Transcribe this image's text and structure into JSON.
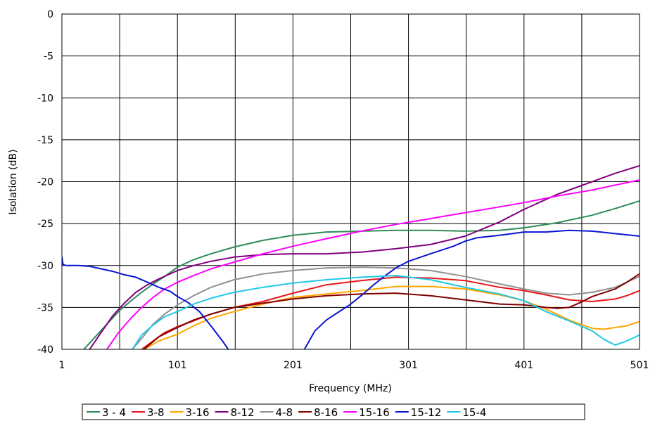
{
  "chart_data": {
    "type": "line",
    "xlabel": "Frequency (MHz)",
    "ylabel": "Isolation (dB)",
    "xlim": [
      1,
      501
    ],
    "ylim": [
      -40,
      0
    ],
    "x_ticks": [
      "1",
      "101",
      "201",
      "301",
      "401",
      "501"
    ],
    "x_tick_values": [
      1,
      101,
      201,
      301,
      401,
      501
    ],
    "y_ticks": [
      "0",
      "-5",
      "-10",
      "-15",
      "-20",
      "-25",
      "-30",
      "-35",
      "-40"
    ],
    "y_tick_values": [
      0,
      -5,
      -10,
      -15,
      -20,
      -25,
      -30,
      -35,
      -40
    ],
    "grid": true,
    "legend_position": "bottom",
    "series": [
      {
        "name": "3 - 4",
        "color": "#2e8b57",
        "x": [
          20,
          30,
          40,
          50,
          60,
          70,
          80,
          90,
          101,
          115,
          130,
          150,
          175,
          201,
          230,
          260,
          290,
          320,
          350,
          380,
          401,
          430,
          460,
          480,
          501
        ],
        "y": [
          -40,
          -38.5,
          -37,
          -35.5,
          -34.3,
          -33.2,
          -32.2,
          -31.3,
          -30.2,
          -29.3,
          -28.6,
          -27.8,
          -27,
          -26.4,
          -26,
          -25.9,
          -25.8,
          -25.8,
          -25.9,
          -25.8,
          -25.5,
          -24.9,
          -24,
          -23.2,
          -22.3
        ]
      },
      {
        "name": "3-8",
        "color": "#e8161b",
        "x": [
          70,
          80,
          90,
          101,
          115,
          130,
          150,
          175,
          201,
          230,
          260,
          290,
          320,
          350,
          380,
          401,
          420,
          440,
          460,
          480,
          490,
          501
        ],
        "y": [
          -40,
          -39,
          -38,
          -37.3,
          -36.6,
          -35.8,
          -35,
          -34.3,
          -33.3,
          -32.3,
          -31.8,
          -31.4,
          -31.5,
          -31.8,
          -32.6,
          -33,
          -33.5,
          -34.1,
          -34.3,
          -34,
          -33.6,
          -33
        ]
      },
      {
        "name": "3-16",
        "color": "#ffa500",
        "x": [
          72,
          85,
          101,
          115,
          130,
          150,
          175,
          201,
          230,
          260,
          290,
          320,
          350,
          380,
          401,
          420,
          440,
          460,
          470,
          480,
          490,
          501
        ],
        "y": [
          -40,
          -39,
          -38.2,
          -37.2,
          -36.3,
          -35.5,
          -34.6,
          -33.8,
          -33.4,
          -33,
          -32.5,
          -32.5,
          -32.8,
          -33.5,
          -34.2,
          -35.2,
          -36.5,
          -37.5,
          -37.6,
          -37.4,
          -37.2,
          -36.7
        ]
      },
      {
        "name": "8-12",
        "color": "#800080",
        "x": [
          25,
          35,
          45,
          55,
          65,
          75,
          85,
          101,
          115,
          130,
          150,
          175,
          201,
          230,
          260,
          290,
          320,
          350,
          380,
          401,
          430,
          460,
          480,
          501
        ],
        "y": [
          -40,
          -38,
          -36,
          -34.5,
          -33.2,
          -32.3,
          -31.6,
          -30.6,
          -30,
          -29.5,
          -29,
          -28.7,
          -28.6,
          -28.6,
          -28.4,
          -28,
          -27.5,
          -26.5,
          -24.8,
          -23.3,
          -21.5,
          -20,
          -19,
          -18.1
        ]
      },
      {
        "name": "4-8",
        "color": "#909090",
        "x": [
          62,
          70,
          80,
          90,
          101,
          115,
          130,
          150,
          175,
          201,
          230,
          260,
          290,
          320,
          350,
          380,
          401,
          420,
          440,
          460,
          480,
          501
        ],
        "y": [
          -40,
          -38.7,
          -37,
          -35.8,
          -34.7,
          -33.6,
          -32.6,
          -31.7,
          -31,
          -30.6,
          -30.3,
          -30.2,
          -30.3,
          -30.6,
          -31.3,
          -32.2,
          -32.8,
          -33.3,
          -33.5,
          -33.2,
          -32.6,
          -31.3
        ]
      },
      {
        "name": "8-16",
        "color": "#800000",
        "x": [
          72,
          85,
          101,
          115,
          130,
          150,
          175,
          201,
          230,
          260,
          290,
          320,
          350,
          380,
          401,
          420,
          430,
          440,
          450,
          460,
          480,
          490,
          501
        ],
        "y": [
          -40,
          -38.5,
          -37.4,
          -36.5,
          -35.8,
          -35,
          -34.5,
          -34,
          -33.6,
          -33.4,
          -33.3,
          -33.6,
          -34.1,
          -34.6,
          -34.7,
          -35,
          -35.1,
          -35,
          -34.4,
          -33.7,
          -32.8,
          -32,
          -31
        ]
      },
      {
        "name": "15-16",
        "color": "#ff00ff",
        "x": [
          40,
          50,
          60,
          70,
          80,
          90,
          101,
          115,
          130,
          150,
          175,
          201,
          230,
          260,
          290,
          320,
          350,
          380,
          401,
          430,
          460,
          480,
          501
        ],
        "y": [
          -40,
          -38,
          -36.4,
          -35,
          -33.8,
          -32.8,
          -32,
          -31.2,
          -30.4,
          -29.6,
          -28.6,
          -27.7,
          -26.8,
          -25.9,
          -25.1,
          -24.4,
          -23.7,
          -23,
          -22.5,
          -21.7,
          -21,
          -20.4,
          -19.8
        ]
      },
      {
        "name": "15-12",
        "color": "#0a14d2",
        "x": [
          1,
          2,
          5,
          15,
          25,
          35,
          45,
          55,
          65,
          75,
          85,
          95,
          101,
          110,
          120,
          130,
          140,
          145
        ],
        "y": [
          -29,
          -29.9,
          -30,
          -30,
          -30.1,
          -30.4,
          -30.7,
          -31.1,
          -31.4,
          -32,
          -32.6,
          -33.1,
          -33.7,
          -34.4,
          -35.5,
          -37.2,
          -39,
          -40
        ]
      },
      {
        "name": "15-12",
        "color": "#0a14d2",
        "x": [
          211,
          220,
          230,
          240,
          250,
          260,
          270,
          280,
          290,
          301,
          320,
          340,
          350,
          360,
          380,
          401,
          420,
          440,
          460,
          480,
          501
        ],
        "y": [
          -40,
          -37.8,
          -36.5,
          -35.6,
          -34.7,
          -33.6,
          -32.4,
          -31.3,
          -30.3,
          -29.5,
          -28.6,
          -27.7,
          -27.1,
          -26.7,
          -26.4,
          -26,
          -26,
          -25.8,
          -25.9,
          -26.2,
          -26.5
        ]
      },
      {
        "name": "15-4",
        "color": "#1ec8e6",
        "x": [
          62,
          70,
          80,
          90,
          101,
          115,
          130,
          150,
          175,
          201,
          230,
          260,
          290,
          320,
          350,
          380,
          401,
          420,
          440,
          460,
          470,
          480,
          490,
          501
        ],
        "y": [
          -40,
          -38.3,
          -37.1,
          -36.1,
          -35.5,
          -34.6,
          -33.9,
          -33.2,
          -32.6,
          -32.1,
          -31.7,
          -31.4,
          -31.2,
          -31.7,
          -32.6,
          -33.4,
          -34.2,
          -35.5,
          -36.6,
          -37.8,
          -38.8,
          -39.5,
          -39,
          -38.3
        ]
      }
    ],
    "legend": [
      {
        "label": "3 - 4",
        "color": "#2e8b57"
      },
      {
        "label": "3-8",
        "color": "#e8161b"
      },
      {
        "label": "3-16",
        "color": "#ffa500"
      },
      {
        "label": "8-12",
        "color": "#800080"
      },
      {
        "label": "4-8",
        "color": "#909090"
      },
      {
        "label": "8-16",
        "color": "#800000"
      },
      {
        "label": "15-16",
        "color": "#ff00ff"
      },
      {
        "label": "15-12",
        "color": "#0a14d2"
      },
      {
        "label": "15-4",
        "color": "#1ec8e6"
      }
    ]
  }
}
